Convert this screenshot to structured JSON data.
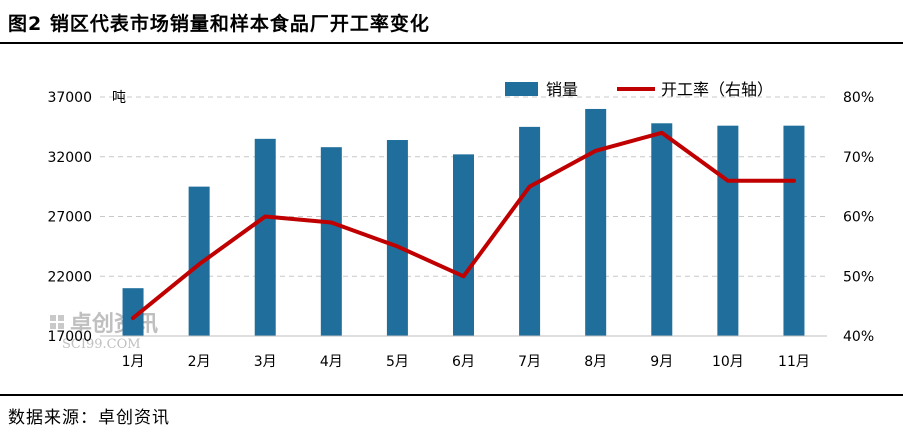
{
  "figure": {
    "title": "图2  销区代表市场销量和样本食品厂开工率变化",
    "source": "数据来源：卓创资讯",
    "watermark": {
      "brand": "卓创资讯",
      "url": "SCI99.COM"
    }
  },
  "chart_data": {
    "type": "bar+line",
    "categories": [
      "1月",
      "2月",
      "3月",
      "4月",
      "5月",
      "6月",
      "7月",
      "8月",
      "9月",
      "10月",
      "11月"
    ],
    "series": [
      {
        "name": "销量",
        "type": "bar",
        "axis": "left",
        "color": "#1f6e9c",
        "values": [
          21000,
          29500,
          33500,
          32800,
          33400,
          32200,
          34500,
          36000,
          34800,
          34600,
          34600
        ]
      },
      {
        "name": "开工率（右轴）",
        "type": "line",
        "axis": "right",
        "color": "#c00000",
        "values": [
          43,
          52,
          60,
          59,
          55,
          50,
          65,
          71,
          74,
          66,
          66
        ]
      }
    ],
    "left_axis": {
      "unit": "吨",
      "range": [
        17000,
        37000
      ],
      "ticks": [
        17000,
        22000,
        27000,
        32000,
        37000
      ],
      "tick_labels": [
        "17000",
        "22000",
        "27000",
        "32000",
        "37000"
      ]
    },
    "right_axis": {
      "range": [
        40,
        80
      ],
      "ticks": [
        40,
        50,
        60,
        70,
        80
      ],
      "tick_labels": [
        "40%",
        "50%",
        "60%",
        "70%",
        "80%"
      ]
    },
    "grid": "horizontal-dashed",
    "legend": "top-right"
  }
}
